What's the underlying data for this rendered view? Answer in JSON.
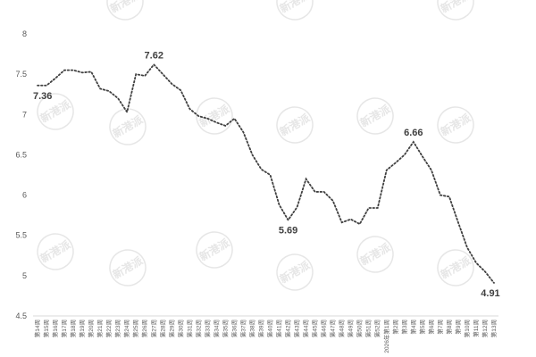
{
  "watermark_text": "新港派",
  "colors": {
    "line": "#404040",
    "axis": "#d9d9d9",
    "text": "#595959",
    "watermark": "#e6e6e6"
  },
  "chart_data": {
    "type": "line",
    "title": "",
    "xlabel": "",
    "ylabel": "",
    "ylim": [
      4.5,
      8
    ],
    "y_ticks": [
      4.5,
      5,
      5.5,
      6,
      6.5,
      7,
      7.5,
      8
    ],
    "y_tick_labels": [
      "4.5",
      "5",
      "5.5",
      "6",
      "6.5",
      "7",
      "7.5",
      "8"
    ],
    "grid": false,
    "line_style": "dotted",
    "categories": [
      "第14周",
      "第15周",
      "第16周",
      "第17周",
      "第18周",
      "第19周",
      "第20周",
      "第21周",
      "第22周",
      "第23周",
      "第24周",
      "第25周",
      "第26周",
      "第27周",
      "第28周",
      "第29周",
      "第30周",
      "第31周",
      "第32周",
      "第33周",
      "第34周",
      "第35周",
      "第36周",
      "第37周",
      "第38周",
      "第39周",
      "第40周",
      "第41周",
      "第42周",
      "第43周",
      "第44周",
      "第45周",
      "第46周",
      "第47周",
      "第48周",
      "第49周",
      "第50周",
      "第51周",
      "第52周",
      "2026年第1周",
      "第2周",
      "第3周",
      "第4周",
      "第5周",
      "第6周",
      "第7周",
      "第8周",
      "第9周",
      "第10周",
      "第11周",
      "第12周",
      "第13周"
    ],
    "series": [
      {
        "values": [
          7.36,
          7.36,
          7.45,
          7.55,
          7.55,
          7.52,
          7.53,
          7.32,
          7.29,
          7.2,
          7.03,
          7.5,
          7.48,
          7.62,
          7.5,
          7.38,
          7.3,
          7.07,
          6.98,
          6.95,
          6.9,
          6.86,
          6.95,
          6.78,
          6.5,
          6.32,
          6.25,
          5.88,
          5.69,
          5.85,
          6.2,
          6.04,
          6.04,
          5.93,
          5.66,
          5.7,
          5.64,
          5.84,
          5.84,
          6.31,
          6.4,
          6.5,
          6.66,
          6.48,
          6.31,
          6.0,
          5.98,
          5.66,
          5.35,
          5.16,
          5.05,
          4.91
        ]
      }
    ],
    "annotations": [
      {
        "index": 0,
        "text": "7.36",
        "position": "below"
      },
      {
        "index": 13,
        "text": "7.62",
        "position": "above"
      },
      {
        "index": 28,
        "text": "5.69",
        "position": "below"
      },
      {
        "index": 42,
        "text": "6.66",
        "position": "above"
      },
      {
        "index": 51,
        "text": "4.91",
        "position": "below"
      }
    ]
  }
}
